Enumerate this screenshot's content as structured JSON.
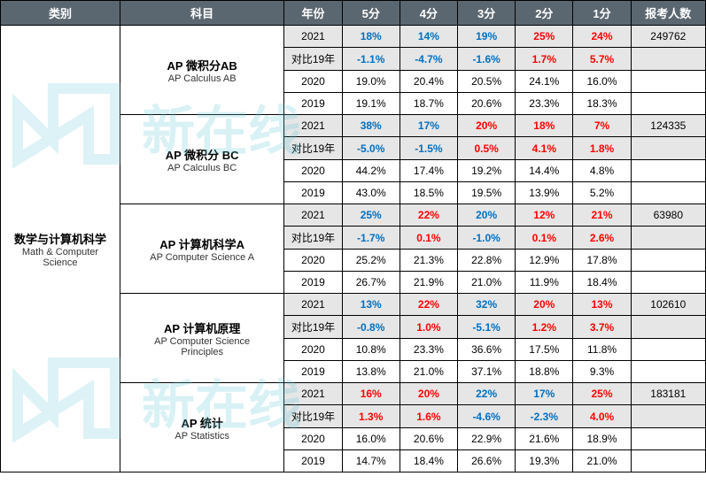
{
  "headers": {
    "category": "类别",
    "subject": "科目",
    "year": "年份",
    "s5": "5分",
    "s4": "4分",
    "s3": "3分",
    "s2": "2分",
    "s1": "1分",
    "count": "报考人数"
  },
  "category": {
    "cn": "数学与计算机科学",
    "en": "Math & Computer\nScience"
  },
  "labels": {
    "diff19": "对比19年"
  },
  "subjects": [
    {
      "cn": "AP 微积分AB",
      "en": "AP Calculus AB",
      "count": "249762",
      "r2021": {
        "s5": "18%",
        "s4": "14%",
        "s3": "19%",
        "s2": "25%",
        "s1": "24%"
      },
      "c2021": {
        "s5": "blue",
        "s4": "blue",
        "s3": "blue",
        "s2": "red",
        "s1": "red"
      },
      "diff": {
        "s5": "-1.1%",
        "s4": "-4.7%",
        "s3": "-1.6%",
        "s2": "1.7%",
        "s1": "5.7%"
      },
      "cdiff": {
        "s5": "blue",
        "s4": "blue",
        "s3": "blue",
        "s2": "red",
        "s1": "red"
      },
      "r2020": {
        "s5": "19.0%",
        "s4": "20.4%",
        "s3": "20.5%",
        "s2": "24.1%",
        "s1": "16.0%"
      },
      "r2019": {
        "s5": "19.1%",
        "s4": "18.7%",
        "s3": "20.6%",
        "s2": "23.3%",
        "s1": "18.3%"
      }
    },
    {
      "cn": "AP 微积分 BC",
      "en": "AP Calculus BC",
      "count": "124335",
      "r2021": {
        "s5": "38%",
        "s4": "17%",
        "s3": "20%",
        "s2": "18%",
        "s1": "7%"
      },
      "c2021": {
        "s5": "blue",
        "s4": "blue",
        "s3": "red",
        "s2": "red",
        "s1": "red"
      },
      "diff": {
        "s5": "-5.0%",
        "s4": "-1.5%",
        "s3": "0.5%",
        "s2": "4.1%",
        "s1": "1.8%"
      },
      "cdiff": {
        "s5": "blue",
        "s4": "blue",
        "s3": "red",
        "s2": "red",
        "s1": "red"
      },
      "r2020": {
        "s5": "44.2%",
        "s4": "17.4%",
        "s3": "19.2%",
        "s2": "14.4%",
        "s1": "4.8%"
      },
      "r2019": {
        "s5": "43.0%",
        "s4": "18.5%",
        "s3": "19.5%",
        "s2": "13.9%",
        "s1": "5.2%"
      }
    },
    {
      "cn": "AP 计算机科学A",
      "en": "AP Computer Science A",
      "count": "63980",
      "r2021": {
        "s5": "25%",
        "s4": "22%",
        "s3": "20%",
        "s2": "12%",
        "s1": "21%"
      },
      "c2021": {
        "s5": "blue",
        "s4": "red",
        "s3": "blue",
        "s2": "red",
        "s1": "red"
      },
      "diff": {
        "s5": "-1.7%",
        "s4": "0.1%",
        "s3": "-1.0%",
        "s2": "0.1%",
        "s1": "2.6%"
      },
      "cdiff": {
        "s5": "blue",
        "s4": "red",
        "s3": "blue",
        "s2": "red",
        "s1": "red"
      },
      "r2020": {
        "s5": "25.2%",
        "s4": "21.3%",
        "s3": "22.8%",
        "s2": "12.9%",
        "s1": "17.8%"
      },
      "r2019": {
        "s5": "26.7%",
        "s4": "21.9%",
        "s3": "21.0%",
        "s2": "11.9%",
        "s1": "18.4%"
      }
    },
    {
      "cn": "AP 计算机原理",
      "en": "AP Computer Science\nPrinciples",
      "count": "102610",
      "r2021": {
        "s5": "13%",
        "s4": "22%",
        "s3": "32%",
        "s2": "20%",
        "s1": "13%"
      },
      "c2021": {
        "s5": "blue",
        "s4": "red",
        "s3": "blue",
        "s2": "red",
        "s1": "red"
      },
      "diff": {
        "s5": "-0.8%",
        "s4": "1.0%",
        "s3": "-5.1%",
        "s2": "1.2%",
        "s1": "3.7%"
      },
      "cdiff": {
        "s5": "blue",
        "s4": "red",
        "s3": "blue",
        "s2": "red",
        "s1": "red"
      },
      "r2020": {
        "s5": "10.8%",
        "s4": "23.3%",
        "s3": "36.6%",
        "s2": "17.5%",
        "s1": "11.8%"
      },
      "r2019": {
        "s5": "13.8%",
        "s4": "21.0%",
        "s3": "37.1%",
        "s2": "18.8%",
        "s1": "9.3%"
      }
    },
    {
      "cn": "AP 统计",
      "en": "AP Statistics",
      "count": "183181",
      "r2021": {
        "s5": "16%",
        "s4": "20%",
        "s3": "22%",
        "s2": "17%",
        "s1": "25%"
      },
      "c2021": {
        "s5": "red",
        "s4": "red",
        "s3": "blue",
        "s2": "blue",
        "s1": "red"
      },
      "diff": {
        "s5": "1.3%",
        "s4": "1.6%",
        "s3": "-4.6%",
        "s2": "-2.3%",
        "s1": "4.0%"
      },
      "cdiff": {
        "s5": "red",
        "s4": "red",
        "s3": "blue",
        "s2": "blue",
        "s1": "red"
      },
      "r2020": {
        "s5": "16.0%",
        "s4": "20.6%",
        "s3": "22.9%",
        "s2": "21.6%",
        "s1": "18.9%"
      },
      "r2019": {
        "s5": "14.7%",
        "s4": "18.4%",
        "s3": "26.6%",
        "s2": "19.3%",
        "s1": "21.0%"
      }
    }
  ],
  "colors": {
    "header_bg": "#5b6770",
    "header_fg": "#ffffff",
    "row_2021_bg": "#e6e6e6",
    "blue": "#0070c0",
    "red": "#ff0000",
    "watermark": "#68c8d8",
    "watermark_orange": "#ff9933"
  },
  "watermark_text": "新在线"
}
